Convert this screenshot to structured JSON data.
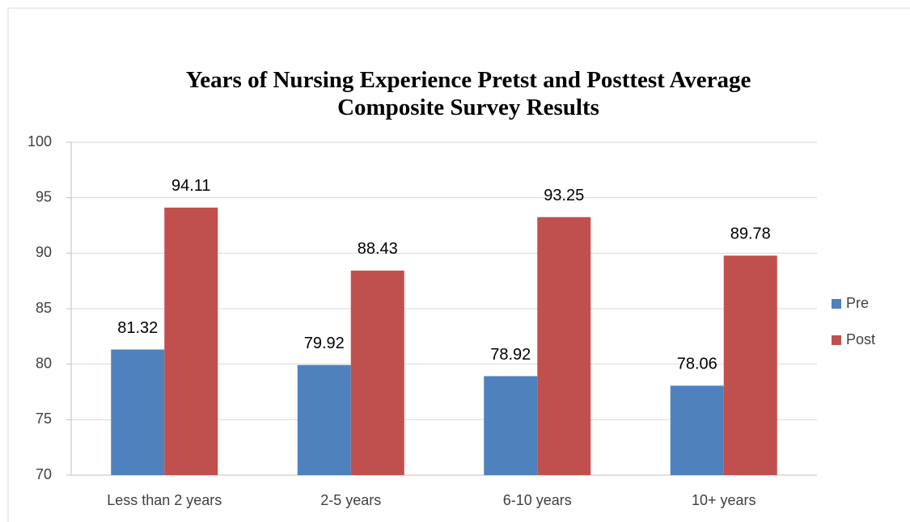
{
  "chart_data": {
    "type": "bar",
    "title": "Years of Nursing Experience Pretst and Posttest Average Composite Survey Results",
    "categories": [
      "Less than 2 years",
      "2-5 years",
      "6-10 years",
      "10+ years"
    ],
    "series": [
      {
        "name": "Pre",
        "color": "#4f81bd",
        "values": [
          81.32,
          79.92,
          78.92,
          78.06
        ]
      },
      {
        "name": "Post",
        "color": "#c0504d",
        "values": [
          94.11,
          88.43,
          93.25,
          89.78
        ]
      }
    ],
    "ylim": [
      70,
      100
    ],
    "yticks": [
      70,
      75,
      80,
      85,
      90,
      95,
      100
    ],
    "grid": true,
    "legend": "right"
  }
}
